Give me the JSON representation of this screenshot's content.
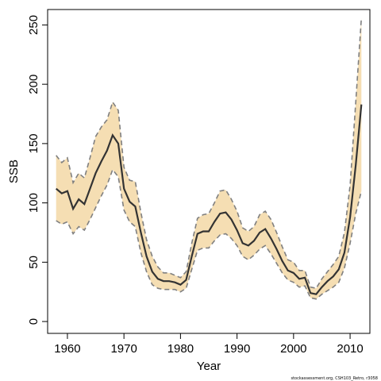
{
  "chart_data": {
    "type": "area",
    "xlabel": "Year",
    "ylabel": "SSB",
    "xlim": [
      1956.5,
      2013.5
    ],
    "ylim": [
      -10,
      263
    ],
    "xticks": [
      1960,
      1970,
      1980,
      1990,
      2000,
      2010
    ],
    "yticks": [
      0,
      50,
      100,
      150,
      200,
      250
    ],
    "colors": {
      "band": "#f5deb3",
      "median": "#333333",
      "bounds": "#808080"
    },
    "x": [
      1958,
      1959,
      1960,
      1961,
      1962,
      1963,
      1964,
      1965,
      1966,
      1967,
      1968,
      1969,
      1970,
      1971,
      1972,
      1973,
      1974,
      1975,
      1976,
      1977,
      1978,
      1979,
      1980,
      1981,
      1982,
      1983,
      1984,
      1985,
      1986,
      1987,
      1988,
      1989,
      1990,
      1991,
      1992,
      1993,
      1994,
      1995,
      1996,
      1997,
      1998,
      1999,
      2000,
      2001,
      2002,
      2003,
      2004,
      2005,
      2006,
      2007,
      2008,
      2009,
      2010,
      2011,
      2012
    ],
    "median": [
      112,
      108,
      110,
      95,
      103,
      99,
      112,
      125,
      135,
      144,
      157,
      150,
      112,
      101,
      97,
      75,
      55,
      42,
      36,
      34,
      34,
      33,
      31,
      35,
      55,
      74,
      76,
      76,
      84,
      91,
      92,
      86,
      77,
      66,
      64,
      68,
      75,
      78,
      70,
      61,
      51,
      43,
      41,
      36,
      37,
      24,
      23,
      29,
      34,
      38,
      44,
      58,
      88,
      132,
      183
    ],
    "upper": [
      140,
      134,
      138,
      117,
      125,
      121,
      138,
      156,
      164,
      170,
      185,
      178,
      130,
      119,
      118,
      92,
      69,
      55,
      46,
      41,
      41,
      39,
      37,
      42,
      66,
      87,
      90,
      91,
      100,
      110,
      111,
      103,
      93,
      79,
      76,
      80,
      90,
      93,
      86,
      75,
      63,
      52,
      50,
      43,
      43,
      29,
      28,
      36,
      42,
      48,
      55,
      75,
      115,
      185,
      256
    ],
    "lower": [
      85,
      82,
      84,
      74,
      80,
      77,
      86,
      96,
      106,
      115,
      128,
      122,
      94,
      84,
      80,
      58,
      42,
      31,
      28,
      27,
      27,
      27,
      25,
      28,
      44,
      60,
      62,
      62,
      68,
      73,
      74,
      70,
      64,
      55,
      52,
      56,
      61,
      64,
      57,
      49,
      41,
      35,
      33,
      29,
      30,
      20,
      19,
      23,
      26,
      29,
      33,
      45,
      66,
      91,
      110
    ]
  },
  "credit": "stockassessment.org, CSH103_Retro, r3058"
}
